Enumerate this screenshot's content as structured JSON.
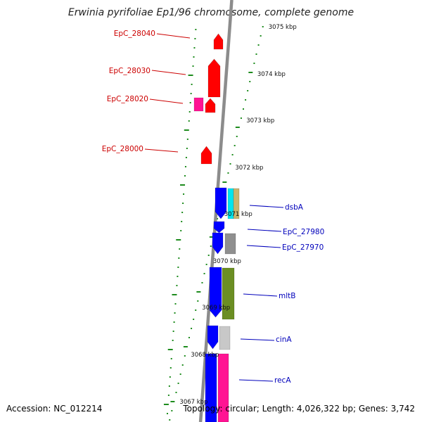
{
  "title": "Erwinia pyrifoliae Ep1/96 chromosome, complete genome",
  "accession": "Accession: NC_012214",
  "summary": "Topology: circular; Length: 4,026,322 bp; Genes: 3,742",
  "ticks": [
    {
      "label": "3075 kbp"
    },
    {
      "label": "3074 kbp"
    },
    {
      "label": "3073 kbp"
    },
    {
      "label": "3072 kbp"
    },
    {
      "label": "3071 kbp"
    },
    {
      "label": "3070 kbp"
    },
    {
      "label": "3069 kbp"
    },
    {
      "label": "3068 kbp"
    },
    {
      "label": "3067 kbp"
    }
  ],
  "gene_labels": [
    {
      "name": "EpC_28040",
      "color": "#cc0000"
    },
    {
      "name": "EpC_28030",
      "color": "#cc0000"
    },
    {
      "name": "EpC_28020",
      "color": "#cc0000"
    },
    {
      "name": "EpC_28000",
      "color": "#cc0000"
    },
    {
      "name": "dsbA",
      "color": "#0000bb"
    },
    {
      "name": "EpC_27980",
      "color": "#0000bb"
    },
    {
      "name": "EpC_27970",
      "color": "#0000bb"
    },
    {
      "name": "mltB",
      "color": "#0000bb"
    },
    {
      "name": "cinA",
      "color": "#0000bb"
    },
    {
      "name": "recA",
      "color": "#0000bb"
    }
  ],
  "colors": {
    "backbone": "#8c8c8c",
    "tick": "#1e8c1e",
    "red_gene": "#ff0000",
    "blue_gene": "#0000ff",
    "magenta_gene": "#ff1493",
    "cyan_gene": "#00e5ee",
    "tan_gene": "#c8b46e",
    "gray_gene": "#8f8f8f",
    "olive_gene": "#6b8e23",
    "silver_gene": "#c8c8c8"
  }
}
